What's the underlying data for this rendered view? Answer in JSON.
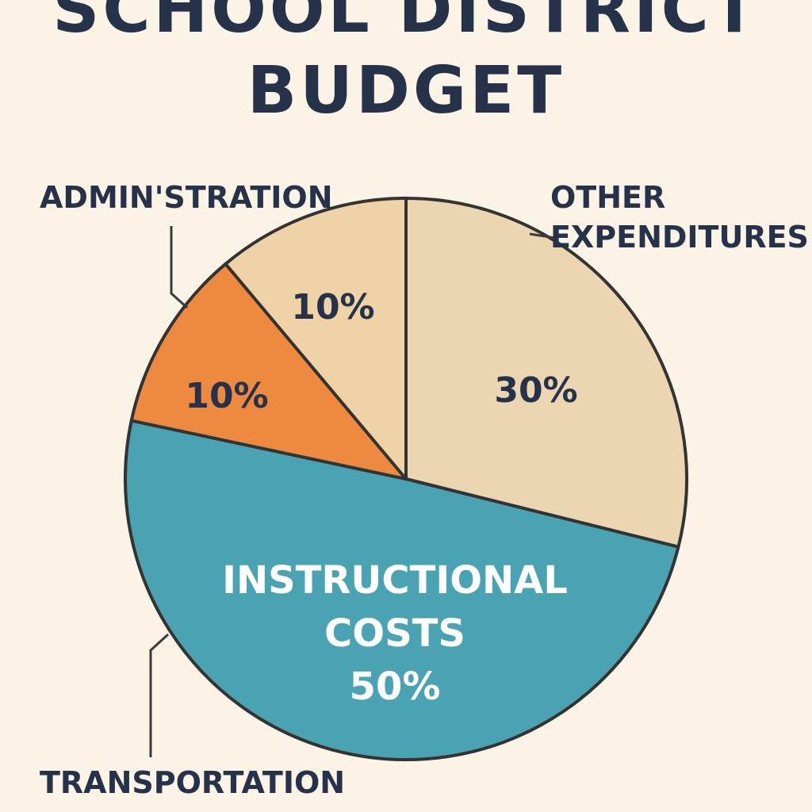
{
  "chart_data": {
    "type": "pie",
    "title": [
      "SCHOOL DISTRICT",
      "BUDGET"
    ],
    "slices": [
      {
        "label": "OTHER EXPENDITURES",
        "value": 30,
        "display": "30%",
        "color": "#ecd5b1"
      },
      {
        "label": "INSTRUCTIONAL COSTS",
        "value": 50,
        "display": "50%",
        "color": "#4aa3b2"
      },
      {
        "label": "TRANSPORTATION",
        "value": 10,
        "display": "10%",
        "color": "#ee8a40"
      },
      {
        "label": "ADMIN'STRATION",
        "value": 10,
        "display": "10%",
        "color": "#efd3a6"
      }
    ],
    "outer_labels": {
      "admin": "ADMIN'STRATION",
      "other_1": "OTHER",
      "other_2": "EXPENDITURES",
      "transport": "TRANSPORTATION"
    },
    "inside_labels": {
      "inst_1": "INSTRUCTIONAL",
      "inst_2": "COSTS"
    }
  }
}
